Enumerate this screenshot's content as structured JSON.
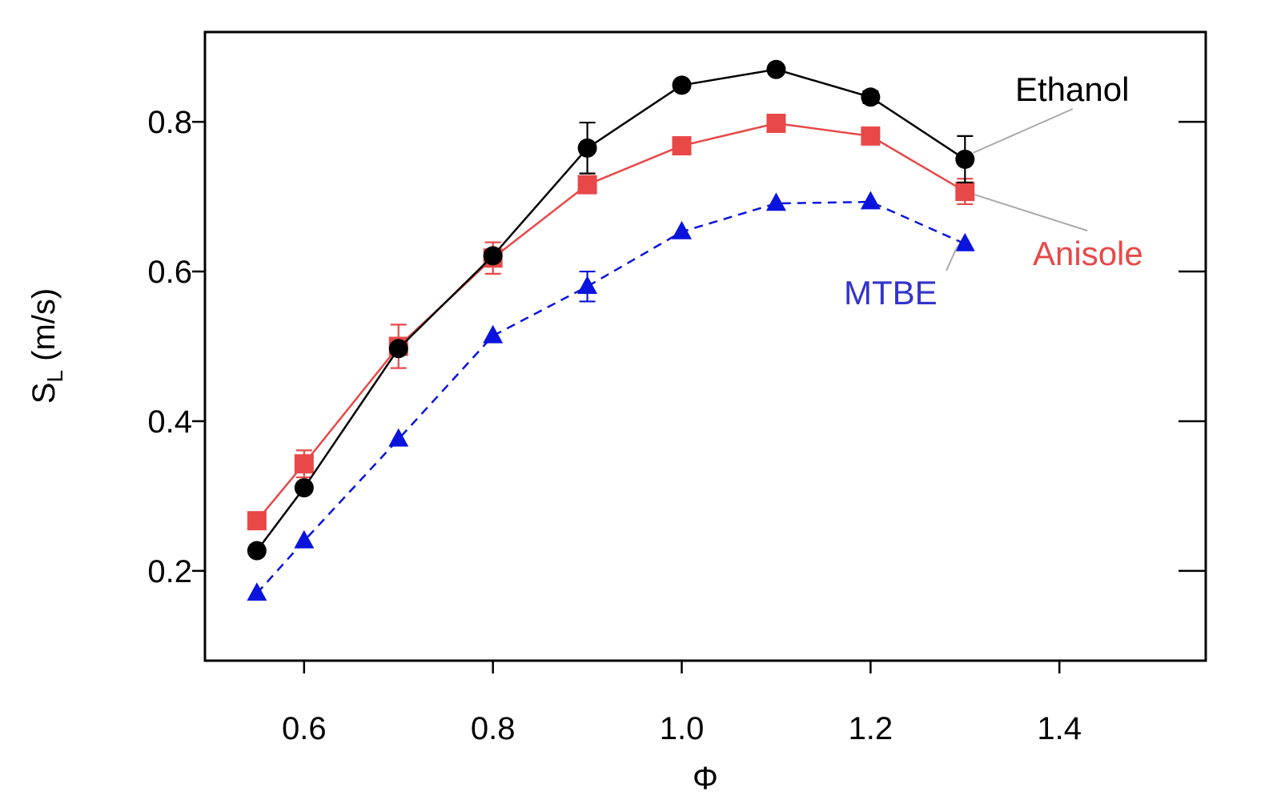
{
  "chart_data": {
    "type": "line",
    "xlabel": "Φ",
    "ylabel": {
      "main": "S",
      "sub": "L",
      "unit": " (m/s)"
    },
    "xlim": [
      0.495,
      1.555
    ],
    "ylim": [
      0.08,
      0.92
    ],
    "xticks": [
      0.6,
      0.8,
      1.0,
      1.2,
      1.4
    ],
    "xtick_labels": [
      "0.6",
      "0.8",
      "1.0",
      "1.2",
      "1.4"
    ],
    "yticks": [
      0.2,
      0.4,
      0.6,
      0.8
    ],
    "ytick_labels": [
      "0.2",
      "0.4",
      "0.6",
      "0.8"
    ],
    "grid": false,
    "legend": "inline labels",
    "series": [
      {
        "name": "Ethanol",
        "color": "#000000",
        "marker": "circle",
        "dash": "solid",
        "x": [
          0.55,
          0.6,
          0.7,
          0.8,
          0.9,
          1.0,
          1.1,
          1.2,
          1.3
        ],
        "y": [
          0.227,
          0.311,
          0.497,
          0.621,
          0.765,
          0.849,
          0.87,
          0.833,
          0.75
        ],
        "err": [
          0.0,
          0.0,
          0.0,
          0.0,
          0.034,
          0.0,
          0.0,
          0.008,
          0.031
        ]
      },
      {
        "name": "Anisole",
        "color": "#e84848",
        "marker": "square",
        "dash": "solid",
        "x": [
          0.55,
          0.6,
          0.7,
          0.8,
          0.9,
          1.0,
          1.1,
          1.2,
          1.3
        ],
        "y": [
          0.267,
          0.343,
          0.5,
          0.618,
          0.716,
          0.768,
          0.798,
          0.781,
          0.707
        ],
        "err": [
          0.0,
          0.018,
          0.029,
          0.021,
          0.0,
          0.0,
          0.0,
          0.0,
          0.017
        ]
      },
      {
        "name": "MTBE",
        "color": "#0a14dc",
        "marker": "triangle",
        "dash": "dashed",
        "x": [
          0.55,
          0.6,
          0.7,
          0.8,
          0.9,
          1.0,
          1.1,
          1.2,
          1.3
        ],
        "y": [
          0.17,
          0.24,
          0.376,
          0.514,
          0.58,
          0.653,
          0.691,
          0.693,
          0.637
        ],
        "err": [
          0.0,
          0.0,
          0.0,
          0.0,
          0.02,
          0.0,
          0.0,
          0.0,
          0.0
        ]
      }
    ]
  }
}
